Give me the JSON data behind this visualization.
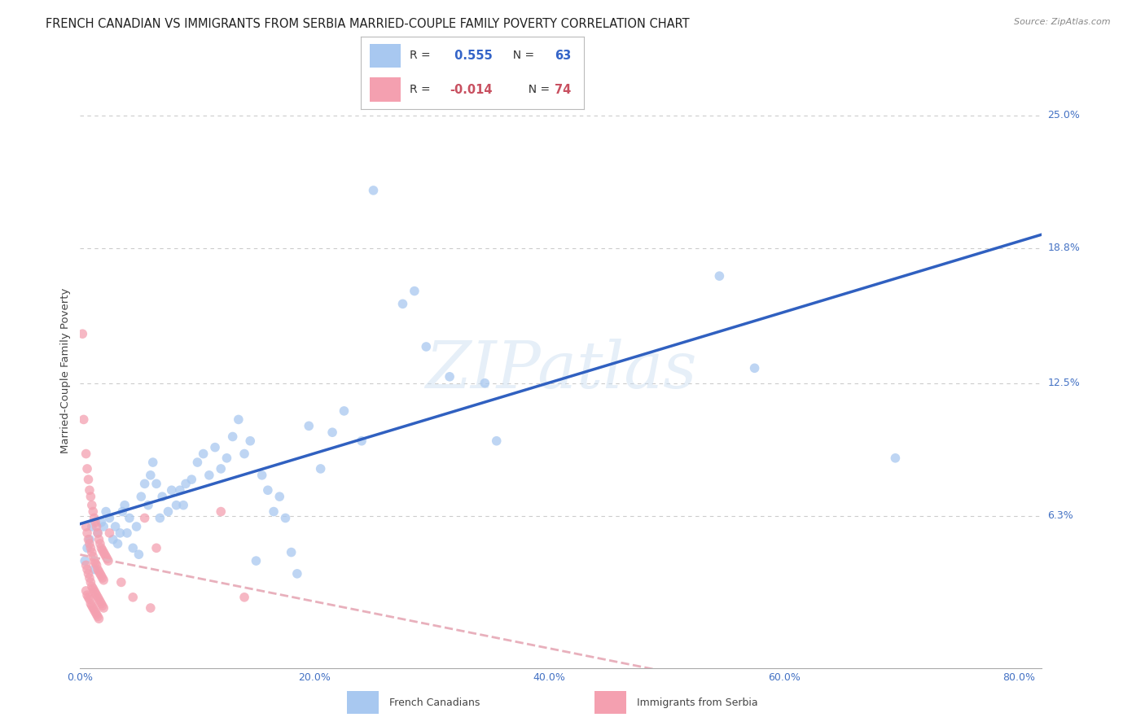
{
  "title": "FRENCH CANADIAN VS IMMIGRANTS FROM SERBIA MARRIED-COUPLE FAMILY POVERTY CORRELATION CHART",
  "source": "Source: ZipAtlas.com",
  "ylabel": "Married-Couple Family Poverty",
  "ytick_vals": [
    0.063,
    0.125,
    0.188,
    0.25
  ],
  "ytick_labels": [
    "6.3%",
    "12.5%",
    "18.8%",
    "25.0%"
  ],
  "blue_color": "#A8C8F0",
  "pink_color": "#F4A0B0",
  "blue_line_color": "#3060C0",
  "pink_line_color": "#E8B0BC",
  "background_color": "#FFFFFF",
  "watermark": "ZIPatlas",
  "blue_scatter": [
    [
      0.004,
      0.042
    ],
    [
      0.006,
      0.048
    ],
    [
      0.008,
      0.052
    ],
    [
      0.01,
      0.058
    ],
    [
      0.012,
      0.038
    ],
    [
      0.015,
      0.055
    ],
    [
      0.018,
      0.06
    ],
    [
      0.02,
      0.058
    ],
    [
      0.022,
      0.065
    ],
    [
      0.025,
      0.062
    ],
    [
      0.028,
      0.052
    ],
    [
      0.03,
      0.058
    ],
    [
      0.032,
      0.05
    ],
    [
      0.034,
      0.055
    ],
    [
      0.036,
      0.065
    ],
    [
      0.038,
      0.068
    ],
    [
      0.04,
      0.055
    ],
    [
      0.042,
      0.062
    ],
    [
      0.045,
      0.048
    ],
    [
      0.048,
      0.058
    ],
    [
      0.05,
      0.045
    ],
    [
      0.052,
      0.072
    ],
    [
      0.055,
      0.078
    ],
    [
      0.058,
      0.068
    ],
    [
      0.06,
      0.082
    ],
    [
      0.062,
      0.088
    ],
    [
      0.065,
      0.078
    ],
    [
      0.068,
      0.062
    ],
    [
      0.07,
      0.072
    ],
    [
      0.075,
      0.065
    ],
    [
      0.078,
      0.075
    ],
    [
      0.082,
      0.068
    ],
    [
      0.085,
      0.075
    ],
    [
      0.088,
      0.068
    ],
    [
      0.09,
      0.078
    ],
    [
      0.095,
      0.08
    ],
    [
      0.1,
      0.088
    ],
    [
      0.105,
      0.092
    ],
    [
      0.11,
      0.082
    ],
    [
      0.115,
      0.095
    ],
    [
      0.12,
      0.085
    ],
    [
      0.125,
      0.09
    ],
    [
      0.13,
      0.1
    ],
    [
      0.135,
      0.108
    ],
    [
      0.14,
      0.092
    ],
    [
      0.145,
      0.098
    ],
    [
      0.15,
      0.042
    ],
    [
      0.155,
      0.082
    ],
    [
      0.16,
      0.075
    ],
    [
      0.165,
      0.065
    ],
    [
      0.17,
      0.072
    ],
    [
      0.175,
      0.062
    ],
    [
      0.18,
      0.046
    ],
    [
      0.185,
      0.036
    ],
    [
      0.195,
      0.105
    ],
    [
      0.205,
      0.085
    ],
    [
      0.215,
      0.102
    ],
    [
      0.225,
      0.112
    ],
    [
      0.24,
      0.098
    ],
    [
      0.25,
      0.215
    ],
    [
      0.275,
      0.162
    ],
    [
      0.285,
      0.168
    ],
    [
      0.295,
      0.142
    ],
    [
      0.315,
      0.128
    ],
    [
      0.345,
      0.125
    ],
    [
      0.355,
      0.098
    ],
    [
      0.545,
      0.175
    ],
    [
      0.575,
      0.132
    ],
    [
      0.695,
      0.09
    ]
  ],
  "pink_scatter": [
    [
      0.002,
      0.148
    ],
    [
      0.003,
      0.108
    ],
    [
      0.005,
      0.092
    ],
    [
      0.006,
      0.085
    ],
    [
      0.007,
      0.08
    ],
    [
      0.008,
      0.075
    ],
    [
      0.009,
      0.072
    ],
    [
      0.01,
      0.068
    ],
    [
      0.011,
      0.065
    ],
    [
      0.012,
      0.062
    ],
    [
      0.013,
      0.06
    ],
    [
      0.014,
      0.058
    ],
    [
      0.015,
      0.055
    ],
    [
      0.016,
      0.052
    ],
    [
      0.017,
      0.05
    ],
    [
      0.018,
      0.048
    ],
    [
      0.019,
      0.047
    ],
    [
      0.02,
      0.046
    ],
    [
      0.021,
      0.045
    ],
    [
      0.022,
      0.044
    ],
    [
      0.023,
      0.043
    ],
    [
      0.024,
      0.042
    ],
    [
      0.005,
      0.058
    ],
    [
      0.006,
      0.055
    ],
    [
      0.007,
      0.052
    ],
    [
      0.008,
      0.05
    ],
    [
      0.009,
      0.048
    ],
    [
      0.01,
      0.046
    ],
    [
      0.011,
      0.044
    ],
    [
      0.012,
      0.042
    ],
    [
      0.013,
      0.041
    ],
    [
      0.014,
      0.04
    ],
    [
      0.015,
      0.038
    ],
    [
      0.016,
      0.037
    ],
    [
      0.017,
      0.036
    ],
    [
      0.018,
      0.035
    ],
    [
      0.019,
      0.034
    ],
    [
      0.02,
      0.033
    ],
    [
      0.005,
      0.04
    ],
    [
      0.006,
      0.038
    ],
    [
      0.007,
      0.036
    ],
    [
      0.008,
      0.034
    ],
    [
      0.009,
      0.032
    ],
    [
      0.01,
      0.03
    ],
    [
      0.011,
      0.029
    ],
    [
      0.012,
      0.028
    ],
    [
      0.013,
      0.027
    ],
    [
      0.014,
      0.026
    ],
    [
      0.015,
      0.025
    ],
    [
      0.016,
      0.024
    ],
    [
      0.017,
      0.023
    ],
    [
      0.018,
      0.022
    ],
    [
      0.019,
      0.021
    ],
    [
      0.02,
      0.02
    ],
    [
      0.005,
      0.028
    ],
    [
      0.006,
      0.026
    ],
    [
      0.007,
      0.025
    ],
    [
      0.008,
      0.024
    ],
    [
      0.009,
      0.022
    ],
    [
      0.01,
      0.021
    ],
    [
      0.011,
      0.02
    ],
    [
      0.012,
      0.019
    ],
    [
      0.013,
      0.018
    ],
    [
      0.014,
      0.017
    ],
    [
      0.015,
      0.016
    ],
    [
      0.016,
      0.015
    ],
    [
      0.055,
      0.062
    ],
    [
      0.065,
      0.048
    ],
    [
      0.12,
      0.065
    ],
    [
      0.025,
      0.055
    ],
    [
      0.035,
      0.032
    ],
    [
      0.045,
      0.025
    ],
    [
      0.06,
      0.02
    ],
    [
      0.14,
      0.025
    ]
  ],
  "xlim": [
    0,
    0.82
  ],
  "ylim": [
    -0.008,
    0.27
  ],
  "xtick_positions": [
    0.0,
    0.2,
    0.4,
    0.6,
    0.8
  ],
  "xtick_labels": [
    "0.0%",
    "20.0%",
    "40.0%",
    "60.0%",
    "80.0%"
  ],
  "grid_color": "#CCCCCC",
  "title_fontsize": 10.5,
  "axis_label_fontsize": 9.5,
  "tick_label_color": "#4472C4"
}
